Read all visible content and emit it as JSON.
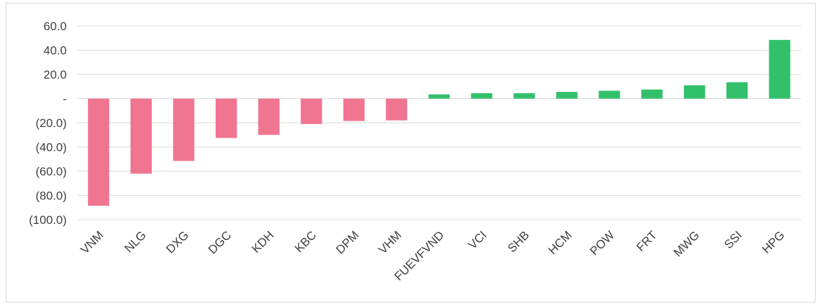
{
  "chart_data": {
    "type": "bar",
    "title": "",
    "xlabel": "",
    "ylabel": "",
    "categories": [
      "VNM",
      "NLG",
      "DXG",
      "DGC",
      "KDH",
      "KBC",
      "DPM",
      "VHM",
      "FUEVFVND",
      "VCI",
      "SHB",
      "HCM",
      "POW",
      "FRT",
      "MWG",
      "SSI",
      "HPG"
    ],
    "values": [
      -88.5,
      -62.0,
      -51.5,
      -32.5,
      -30.0,
      -21.0,
      -18.5,
      -18.0,
      3.5,
      4.5,
      4.5,
      5.5,
      6.5,
      7.5,
      11.0,
      13.5,
      48.5
    ],
    "ylim": [
      -100,
      60
    ],
    "yticks": [
      60,
      40,
      20,
      0,
      -20,
      -40,
      -60,
      -80,
      -100
    ],
    "ytick_labels": [
      "60.0",
      "40.0",
      "20.0",
      "-",
      "(20.0)",
      "(40.0)",
      "(60.0)",
      "(80.0)",
      "(100.0)"
    ],
    "grid": true,
    "colors": {
      "negative": "#f07591",
      "positive": "#33c06b",
      "grid": "#d9d9d9",
      "text": "#404040"
    }
  }
}
